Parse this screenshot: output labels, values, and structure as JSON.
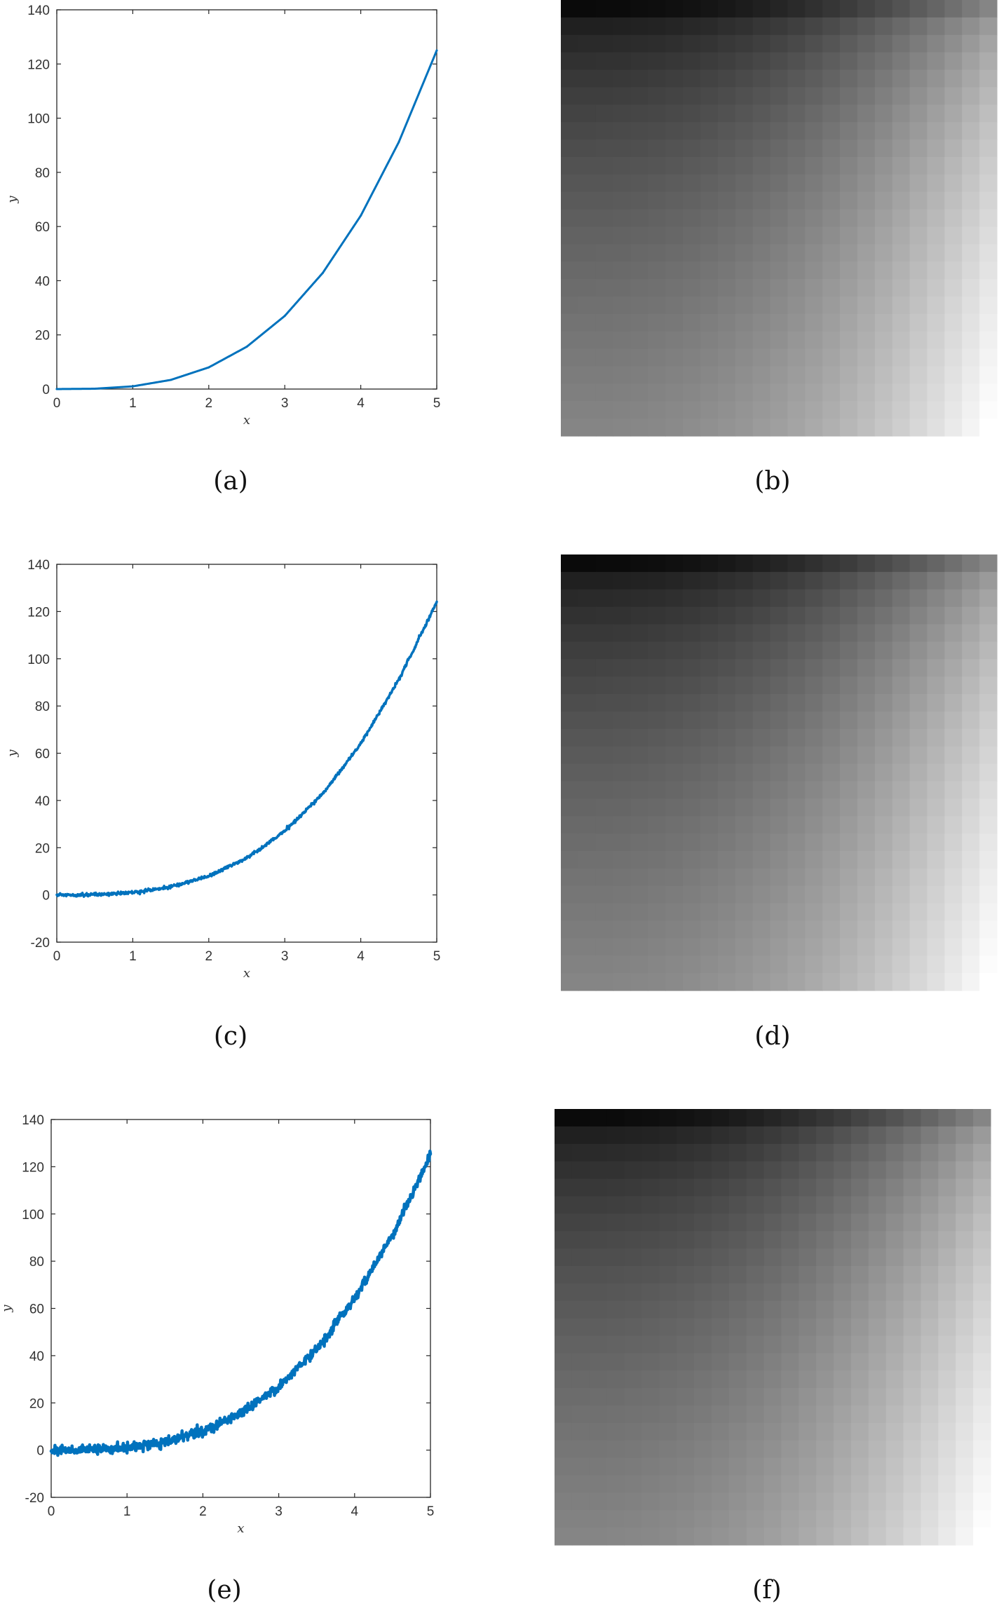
{
  "figure": {
    "captions": [
      "(a)",
      "(b)",
      "(c)",
      "(d)",
      "(e)",
      "(f)"
    ]
  },
  "colors": {
    "line": "#0072BD",
    "axes": "#262626",
    "background": "#ffffff"
  },
  "chart_data": [
    {
      "id": "a",
      "type": "line",
      "title": "",
      "xlabel": "x",
      "ylabel": "y",
      "xlim": [
        0,
        5
      ],
      "ylim": [
        0,
        140
      ],
      "xticks": [
        0,
        1,
        2,
        3,
        4,
        5
      ],
      "yticks": [
        0,
        20,
        40,
        60,
        80,
        100,
        120,
        140
      ],
      "grid": false,
      "noise": "none",
      "x": [
        0,
        0.5,
        1,
        1.5,
        2,
        2.5,
        3,
        3.5,
        4,
        4.5,
        5
      ],
      "y": [
        0,
        0.125,
        1,
        3.375,
        8,
        15.625,
        27,
        42.875,
        64,
        91.125,
        125
      ]
    },
    {
      "id": "b",
      "type": "heatmap",
      "colormap": "gray",
      "grid_size": [
        25,
        25
      ],
      "description": "dark at top-left, light at bottom-right"
    },
    {
      "id": "c",
      "type": "line",
      "title": "",
      "xlabel": "x",
      "ylabel": "y",
      "xlim": [
        0,
        5
      ],
      "ylim": [
        -20,
        140
      ],
      "xticks": [
        0,
        1,
        2,
        3,
        4,
        5
      ],
      "yticks": [
        -20,
        0,
        20,
        40,
        60,
        80,
        100,
        120,
        140
      ],
      "grid": false,
      "noise": "low",
      "x": [
        0,
        0.5,
        1,
        1.5,
        2,
        2.5,
        3,
        3.5,
        4,
        4.5,
        5
      ],
      "y": [
        0,
        0.125,
        1,
        3.375,
        8,
        15.625,
        27,
        42.875,
        64,
        91.125,
        124
      ]
    },
    {
      "id": "d",
      "type": "heatmap",
      "colormap": "gray",
      "grid_size": [
        25,
        25
      ],
      "description": "dark at top-left, light at bottom-right"
    },
    {
      "id": "e",
      "type": "line",
      "title": "",
      "xlabel": "x",
      "ylabel": "y",
      "xlim": [
        0,
        5
      ],
      "ylim": [
        -20,
        140
      ],
      "xticks": [
        0,
        1,
        2,
        3,
        4,
        5
      ],
      "yticks": [
        -20,
        0,
        20,
        40,
        60,
        80,
        100,
        120,
        140
      ],
      "grid": false,
      "noise": "high",
      "x": [
        0,
        0.5,
        1,
        1.5,
        2,
        2.5,
        3,
        3.5,
        4,
        4.5,
        5
      ],
      "y": [
        0,
        0.125,
        1,
        3.375,
        8,
        15.625,
        27,
        42.875,
        64,
        91.125,
        125
      ]
    },
    {
      "id": "f",
      "type": "heatmap",
      "colormap": "gray",
      "grid_size": [
        25,
        25
      ],
      "description": "dark at top-left, light at bottom-right"
    }
  ]
}
